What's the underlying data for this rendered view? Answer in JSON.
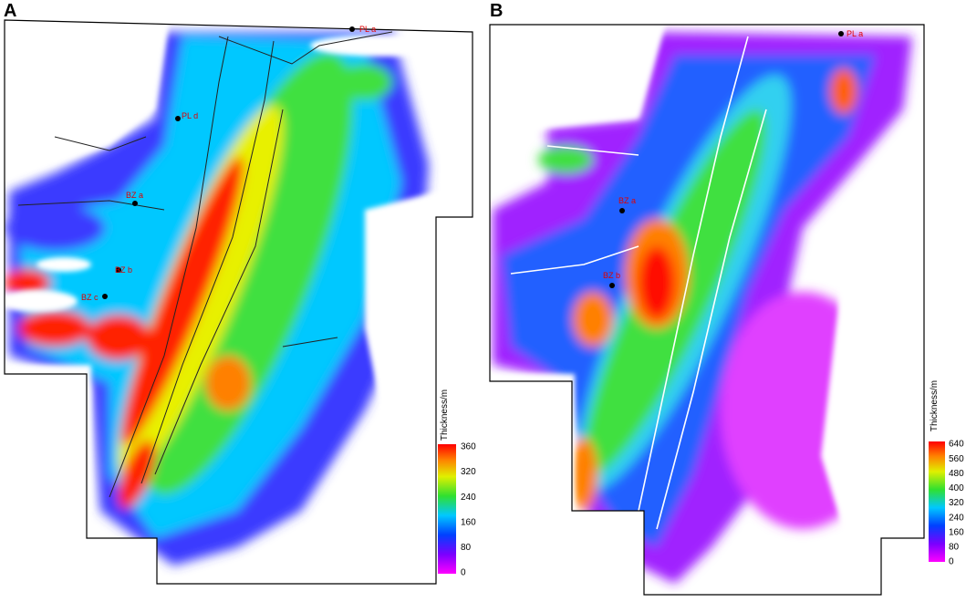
{
  "panels": [
    {
      "label": "A",
      "colorbar": {
        "title": "Thickness/m",
        "ticks": [
          "360",
          "320",
          "240",
          "160",
          "80",
          "0"
        ]
      },
      "wells": [
        "PL a",
        "PL d",
        "BZ a",
        "BZ b",
        "BZ c"
      ]
    },
    {
      "label": "B",
      "colorbar": {
        "title": "Thickness/m",
        "ticks": [
          "640",
          "560",
          "480",
          "400",
          "320",
          "240",
          "160",
          "80",
          "0"
        ]
      },
      "wells": [
        "PL a",
        "BZ a",
        "BZ b"
      ]
    }
  ]
}
